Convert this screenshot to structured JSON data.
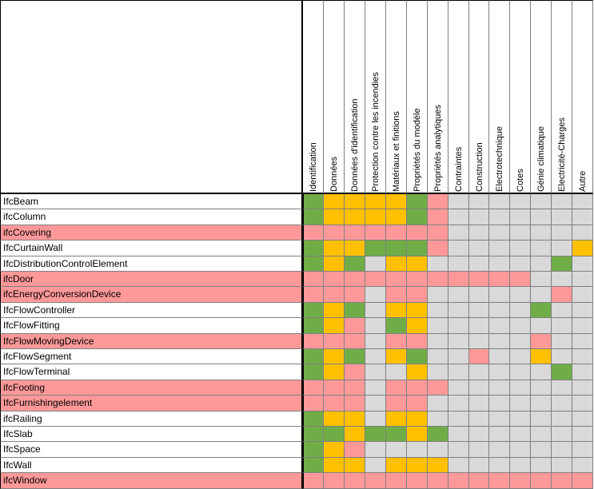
{
  "colors": {
    "G": "#70ad47",
    "Y": "#ffc000",
    "P": "#ff9999",
    "L": "#d9d9d9",
    "W": "#ffffff",
    "pink_row": "#ff9999",
    "white_row": "#ffffff"
  },
  "columns": [
    "Identification",
    "Données",
    "Données d'identification",
    "Protection contre les incendies",
    "Matériaux et finitions",
    "Propriétés du modèle",
    "Propriétés analytiques",
    "Contraintes",
    "Construction",
    "Electrotechnique",
    "Cotes",
    "Génie climatique",
    "Electricité-Charges",
    "Autre"
  ],
  "rows": [
    {
      "label": "IfcBeam",
      "pink": false,
      "cells": "GYYYYGPLLLLLLL"
    },
    {
      "label": "ifcColumn",
      "pink": false,
      "cells": "GYYYYGPLLLLLLL"
    },
    {
      "label": "ifcCovering",
      "pink": true,
      "cells": "PPPPPPPLLLLLLL"
    },
    {
      "label": "IfcCurtainWall",
      "pink": false,
      "cells": "GYYGGGPLLLLLLY"
    },
    {
      "label": "IfcDistributionControlElement",
      "pink": false,
      "cells": "GYGLYYLLLLLLGL"
    },
    {
      "label": "ifcDoor",
      "pink": true,
      "cells": "PPPPPPPPPPPLLL"
    },
    {
      "label": "ifcEnergyConversionDevice",
      "pink": true,
      "cells": "PPPLPPLLLLLLPL"
    },
    {
      "label": "IfcFlowController",
      "pink": false,
      "cells": "GYGLYYLLLLLGLL"
    },
    {
      "label": "IfcFlowFitting",
      "pink": false,
      "cells": "GYPLGYLLLLLLLL"
    },
    {
      "label": "IfcFlowMovingDevice",
      "pink": true,
      "cells": "PPPLPPLLLLLPLL"
    },
    {
      "label": "ifcFlowSegment",
      "pink": false,
      "cells": "GYGLYGLLPLLYLL"
    },
    {
      "label": "IfcFlowTerminal",
      "pink": false,
      "cells": "GYPLLYLLLLLLGL"
    },
    {
      "label": "ifcFooting",
      "pink": true,
      "cells": "PPPLPPPLLLLLLL"
    },
    {
      "label": "IfcFurnishingelement",
      "pink": true,
      "cells": "PPPLPPLLLLLLLL"
    },
    {
      "label": "ifcRailing",
      "pink": false,
      "cells": "GYYLYYLLLLLLLL"
    },
    {
      "label": "IfcSlab",
      "pink": false,
      "cells": "GGYGGYGLLLLLLL"
    },
    {
      "label": "IfcSpace",
      "pink": false,
      "cells": "GYPLLLLLLLLLLL"
    },
    {
      "label": "IfcWall",
      "pink": false,
      "cells": "GYYLYYYLLLLLLL"
    },
    {
      "label": "ifcWindow",
      "pink": true,
      "cells": "PPPPPPPPPPPPPP"
    }
  ]
}
